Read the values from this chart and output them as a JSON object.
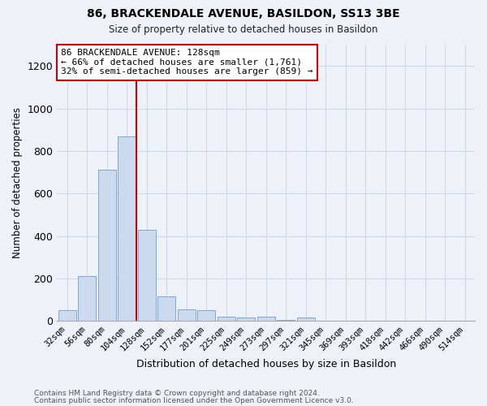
{
  "title_line1": "86, BRACKENDALE AVENUE, BASILDON, SS13 3BE",
  "title_line2": "Size of property relative to detached houses in Basildon",
  "xlabel": "Distribution of detached houses by size in Basildon",
  "ylabel": "Number of detached properties",
  "categories": [
    "32sqm",
    "56sqm",
    "80sqm",
    "104sqm",
    "128sqm",
    "152sqm",
    "177sqm",
    "201sqm",
    "225sqm",
    "249sqm",
    "273sqm",
    "297sqm",
    "321sqm",
    "345sqm",
    "369sqm",
    "393sqm",
    "418sqm",
    "442sqm",
    "466sqm",
    "490sqm",
    "514sqm"
  ],
  "values": [
    50,
    210,
    710,
    870,
    430,
    115,
    55,
    50,
    20,
    15,
    20,
    5,
    15,
    0,
    0,
    0,
    0,
    0,
    0,
    0,
    0
  ],
  "bar_color": "#ccdaf0",
  "bar_edge_color": "#7aaad4",
  "reference_line_x": 3.5,
  "reference_line_color": "#cc0000",
  "annotation_text": "86 BRACKENDALE AVENUE: 128sqm\n← 66% of detached houses are smaller (1,761)\n32% of semi-detached houses are larger (859) →",
  "annotation_box_color": "#ffffff",
  "annotation_box_edge": "#cc0000",
  "ylim": [
    0,
    1300
  ],
  "yticks": [
    0,
    200,
    400,
    600,
    800,
    1000,
    1200
  ],
  "grid_color": "#d0d8e8",
  "bg_color": "#eef2f8",
  "footer_line1": "Contains HM Land Registry data © Crown copyright and database right 2024.",
  "footer_line2": "Contains public sector information licensed under the Open Government Licence v3.0."
}
